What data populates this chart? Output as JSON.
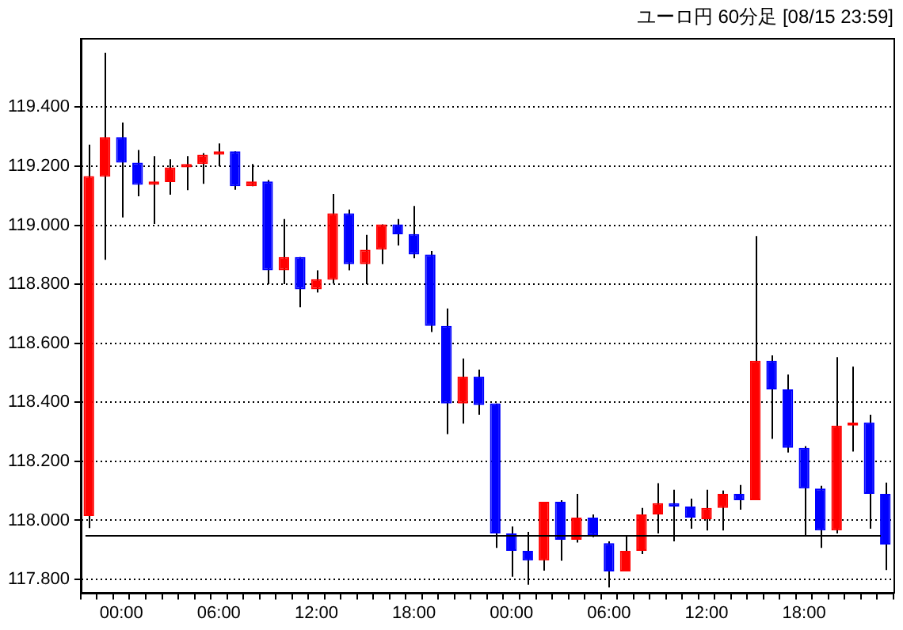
{
  "chart_data": {
    "type": "candlestick",
    "title": "ユーロ円 60分足 [08/15 23:59]",
    "categories": [
      null,
      null,
      "00:00",
      null,
      null,
      null,
      null,
      null,
      "06:00",
      null,
      null,
      null,
      null,
      null,
      "12:00",
      null,
      null,
      null,
      null,
      null,
      "18:00",
      null,
      null,
      null,
      null,
      null,
      "00:00",
      null,
      null,
      null,
      null,
      null,
      "06:00",
      null,
      null,
      null,
      null,
      null,
      "12:00",
      null,
      null,
      null,
      null,
      null,
      "18:00",
      null,
      null,
      null,
      null,
      null
    ],
    "ohlc": [
      [
        118.015,
        119.273,
        117.974,
        119.166
      ],
      [
        119.164,
        119.584,
        118.883,
        119.298
      ],
      [
        119.298,
        119.348,
        119.026,
        119.212
      ],
      [
        119.212,
        119.255,
        119.098,
        119.137
      ],
      [
        119.137,
        119.234,
        119.004,
        119.148
      ],
      [
        119.146,
        119.223,
        119.103,
        119.196
      ],
      [
        119.196,
        119.234,
        119.119,
        119.207
      ],
      [
        119.207,
        119.244,
        119.14,
        119.239
      ],
      [
        119.239,
        119.277,
        119.2,
        119.25
      ],
      [
        119.25,
        119.25,
        119.12,
        119.132
      ],
      [
        119.132,
        119.207,
        119.132,
        119.148
      ],
      [
        119.148,
        119.153,
        118.8,
        118.847
      ],
      [
        118.847,
        119.021,
        118.8,
        118.892
      ],
      [
        118.892,
        118.892,
        118.722,
        118.783
      ],
      [
        118.783,
        118.847,
        118.772,
        118.817
      ],
      [
        118.815,
        119.106,
        118.802,
        119.04
      ],
      [
        119.04,
        119.053,
        118.847,
        118.868
      ],
      [
        118.868,
        118.967,
        118.8,
        118.917
      ],
      [
        118.917,
        119.003,
        118.868,
        119.003
      ],
      [
        119.003,
        119.021,
        118.931,
        118.969
      ],
      [
        118.97,
        119.065,
        118.888,
        118.901
      ],
      [
        118.901,
        118.913,
        118.638,
        118.659
      ],
      [
        118.659,
        118.718,
        118.292,
        118.396
      ],
      [
        118.396,
        118.548,
        118.328,
        118.487
      ],
      [
        118.487,
        118.511,
        118.358,
        118.391
      ],
      [
        118.396,
        118.396,
        117.907,
        117.956
      ],
      [
        117.956,
        117.979,
        117.809,
        117.897
      ],
      [
        117.897,
        117.961,
        117.782,
        117.864
      ],
      [
        117.864,
        118.063,
        117.83,
        118.063
      ],
      [
        118.063,
        118.068,
        117.863,
        117.934
      ],
      [
        117.934,
        118.09,
        117.925,
        118.009
      ],
      [
        118.009,
        118.02,
        117.943,
        117.95
      ],
      [
        117.923,
        117.929,
        117.773,
        117.827
      ],
      [
        117.827,
        117.95,
        117.827,
        117.897
      ],
      [
        117.897,
        118.042,
        117.886,
        118.02
      ],
      [
        118.02,
        118.126,
        117.956,
        118.058
      ],
      [
        118.058,
        118.104,
        117.929,
        118.047
      ],
      [
        118.047,
        118.074,
        117.972,
        118.009
      ],
      [
        118.004,
        118.104,
        117.966,
        118.042
      ],
      [
        118.042,
        118.101,
        117.966,
        118.09
      ],
      [
        118.09,
        118.12,
        118.036,
        118.068
      ],
      [
        118.068,
        118.963,
        118.068,
        118.541
      ],
      [
        118.541,
        118.559,
        118.276,
        118.444
      ],
      [
        118.444,
        118.494,
        118.23,
        118.246
      ],
      [
        118.246,
        118.251,
        117.945,
        118.108
      ],
      [
        118.108,
        118.117,
        117.907,
        117.966
      ],
      [
        117.966,
        118.553,
        117.956,
        118.321
      ],
      [
        118.321,
        118.521,
        118.233,
        118.332
      ],
      [
        118.332,
        118.358,
        117.972,
        118.09
      ],
      [
        118.09,
        118.128,
        117.832,
        117.918
      ]
    ],
    "colors": [
      "#ff0000",
      "#ff0000",
      "#0000ff",
      "#0000ff",
      "#ff0000",
      "#ff0000",
      "#ff0000",
      "#ff0000",
      "#ff0000",
      "#0000ff",
      "#ff0000",
      "#0000ff",
      "#ff0000",
      "#0000ff",
      "#ff0000",
      "#ff0000",
      "#0000ff",
      "#ff0000",
      "#ff0000",
      "#0000ff",
      "#0000ff",
      "#0000ff",
      "#0000ff",
      "#ff0000",
      "#0000ff",
      "#0000ff",
      "#0000ff",
      "#0000ff",
      "#ff0000",
      "#0000ff",
      "#ff0000",
      "#0000ff",
      "#0000ff",
      "#ff0000",
      "#ff0000",
      "#ff0000",
      "#0000ff",
      "#0000ff",
      "#ff0000",
      "#ff0000",
      "#0000ff",
      "#ff0000",
      "#0000ff",
      "#0000ff",
      "#0000ff",
      "#0000ff",
      "#ff0000",
      "#ff0000",
      "#0000ff",
      "#0000ff"
    ],
    "ylim": [
      117.753,
      119.632
    ],
    "yticks": [
      {
        "value": 117.8,
        "label": "117.800"
      },
      {
        "value": 118,
        "label": "118.000"
      },
      {
        "value": 118.2,
        "label": "118.200"
      },
      {
        "value": 118.4,
        "label": "118.400"
      },
      {
        "value": 118.6,
        "label": "118.600"
      },
      {
        "value": 118.8,
        "label": "118.800"
      },
      {
        "value": 119,
        "label": "119.000"
      },
      {
        "value": 119.2,
        "label": "119.200"
      },
      {
        "value": 119.4,
        "label": "119.400"
      }
    ],
    "ref_lines": [
      {
        "axis": "y",
        "value": 117.95,
        "color": "#000000"
      }
    ],
    "grid": "y",
    "legend": false
  }
}
